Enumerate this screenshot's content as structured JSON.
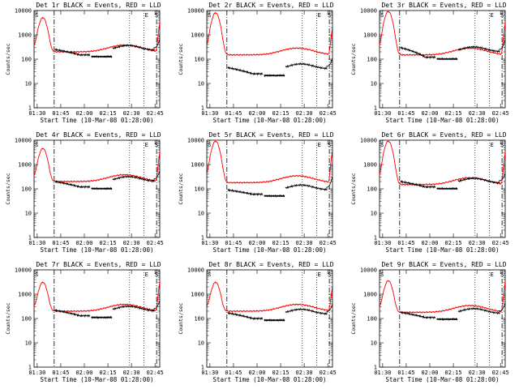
{
  "chart_data": [
    {
      "type": "line",
      "title": "Det 1r BLACK = Events, RED = LLD",
      "xlabel": "Start Time (10-Mar-08 01:28:00)",
      "ylabel": "Counts/sec",
      "x_ticks": [
        "01:30",
        "01:45",
        "02:00",
        "02:15",
        "02:30",
        "02:45"
      ],
      "y_ticks": [
        "1",
        "10",
        "100",
        "1000",
        "10000"
      ],
      "ylim": [
        1,
        10000
      ],
      "y_scale": "log",
      "corner_markers": [
        "S",
        "E",
        "S"
      ],
      "series": [
        {
          "color": "#ff0000",
          "peak": 5000,
          "trough": 200,
          "end": 3000
        },
        {
          "color": "#000000",
          "start": 250,
          "low": 150,
          "mid_step": 230,
          "end": 600
        }
      ]
    },
    {
      "type": "line",
      "title": "Det 2r BLACK = Events, RED = LLD",
      "xlabel": "Start Time (10-Mar-08 01:28:00)",
      "ylabel": "Counts/sec",
      "x_ticks": [
        "01:30",
        "01:45",
        "02:00",
        "02:15",
        "02:30",
        "02:45"
      ],
      "y_ticks": [
        "1",
        "10",
        "100",
        "1000",
        "10000"
      ],
      "ylim": [
        1,
        10000
      ],
      "y_scale": "log",
      "corner_markers": [
        "S",
        "E",
        "S"
      ],
      "series": [
        {
          "color": "#ff0000",
          "peak": 8000,
          "trough": 150,
          "end": 2000
        },
        {
          "color": "#000000",
          "start": 45,
          "low": 25,
          "mid_step": 40,
          "end": 100
        }
      ]
    },
    {
      "type": "line",
      "title": "Det 3r BLACK = Events, RED = LLD",
      "xlabel": "Start Time (10-Mar-08 01:28:00)",
      "ylabel": "Counts/sec",
      "x_ticks": [
        "01:30",
        "01:45",
        "02:00",
        "02:15",
        "02:30",
        "02:45"
      ],
      "y_ticks": [
        "1",
        "10",
        "100",
        "1000",
        "10000"
      ],
      "ylim": [
        1,
        10000
      ],
      "y_scale": "log",
      "corner_markers": [
        "S",
        "E",
        "S"
      ],
      "series": [
        {
          "color": "#ff0000",
          "peak": 9000,
          "trough": 150,
          "end": 3000
        },
        {
          "color": "#000000",
          "start": 300,
          "low": 120,
          "mid_step": 200,
          "end": 600
        }
      ]
    },
    {
      "type": "line",
      "title": "Det 4r BLACK = Events, RED = LLD",
      "xlabel": "Start Time (10-Mar-08 01:28:00)",
      "ylabel": "Counts/sec",
      "x_ticks": [
        "01:30",
        "01:45",
        "02:00",
        "02:15",
        "02:30",
        "02:45"
      ],
      "y_ticks": [
        "1",
        "10",
        "100",
        "1000",
        "10000"
      ],
      "ylim": [
        1,
        10000
      ],
      "y_scale": "log",
      "corner_markers": [
        "S",
        "E",
        "S"
      ],
      "series": [
        {
          "color": "#ff0000",
          "peak": 4500,
          "trough": 200,
          "end": 3000
        },
        {
          "color": "#000000",
          "start": 200,
          "low": 120,
          "mid_step": 200,
          "end": 500
        }
      ]
    },
    {
      "type": "line",
      "title": "Det 5r BLACK = Events, RED = LLD",
      "xlabel": "Start Time (10-Mar-08 01:28:00)",
      "ylabel": "Counts/sec",
      "x_ticks": [
        "01:30",
        "01:45",
        "02:00",
        "02:15",
        "02:30",
        "02:45"
      ],
      "y_ticks": [
        "1",
        "10",
        "100",
        "1000",
        "10000"
      ],
      "ylim": [
        1,
        10000
      ],
      "y_scale": "log",
      "corner_markers": [
        "S",
        "E",
        "S"
      ],
      "series": [
        {
          "color": "#ff0000",
          "peak": 9000,
          "trough": 180,
          "end": 4000
        },
        {
          "color": "#000000",
          "start": 90,
          "low": 60,
          "mid_step": 90,
          "end": 300
        }
      ]
    },
    {
      "type": "line",
      "title": "Det 6r BLACK = Events, RED = LLD",
      "xlabel": "Start Time (10-Mar-08 01:28:00)",
      "ylabel": "Counts/sec",
      "x_ticks": [
        "01:30",
        "01:45",
        "02:00",
        "02:15",
        "02:30",
        "02:45"
      ],
      "y_ticks": [
        "1",
        "10",
        "100",
        "1000",
        "10000"
      ],
      "ylim": [
        1,
        10000
      ],
      "y_scale": "log",
      "corner_markers": [
        "S",
        "E",
        "S"
      ],
      "series": [
        {
          "color": "#ff0000",
          "peak": 9000,
          "trough": 150,
          "end": 3000
        },
        {
          "color": "#000000",
          "start": 200,
          "low": 120,
          "mid_step": 170,
          "end": 400
        }
      ]
    },
    {
      "type": "line",
      "title": "Det 7r BLACK = Events, RED = LLD",
      "xlabel": "Start Time (10-Mar-08 01:28:00)",
      "ylabel": "Counts/sec",
      "x_ticks": [
        "01:30",
        "01:45",
        "02:00",
        "02:15",
        "02:30",
        "02:45"
      ],
      "y_ticks": [
        "1",
        "10",
        "100",
        "1000",
        "10000"
      ],
      "ylim": [
        1,
        10000
      ],
      "y_scale": "log",
      "corner_markers": [
        "S",
        "E",
        "S"
      ],
      "series": [
        {
          "color": "#ff0000",
          "peak": 3000,
          "trough": 200,
          "end": 3000
        },
        {
          "color": "#000000",
          "start": 220,
          "low": 130,
          "mid_step": 200,
          "end": 500
        }
      ]
    },
    {
      "type": "line",
      "title": "Det 8r BLACK = Events, RED = LLD",
      "xlabel": "Start Time (10-Mar-08 01:28:00)",
      "ylabel": "Counts/sec",
      "x_ticks": [
        "01:30",
        "01:45",
        "02:00",
        "02:15",
        "02:30",
        "02:45"
      ],
      "y_ticks": [
        "1",
        "10",
        "100",
        "1000",
        "10000"
      ],
      "ylim": [
        1,
        10000
      ],
      "y_scale": "log",
      "corner_markers": [
        "S",
        "E",
        "S"
      ],
      "series": [
        {
          "color": "#ff0000",
          "peak": 3000,
          "trough": 200,
          "end": 2000
        },
        {
          "color": "#000000",
          "start": 170,
          "low": 100,
          "mid_step": 150,
          "end": 350
        }
      ]
    },
    {
      "type": "line",
      "title": "Det 9r BLACK = Events, RED = LLD",
      "xlabel": "Start Time (10-Mar-08 01:28:00)",
      "ylabel": "Counts/sec",
      "x_ticks": [
        "01:30",
        "01:45",
        "02:00",
        "02:15",
        "02:30",
        "02:45"
      ],
      "y_ticks": [
        "1",
        "10",
        "100",
        "1000",
        "10000"
      ],
      "ylim": [
        1,
        10000
      ],
      "y_scale": "log",
      "corner_markers": [
        "S",
        "E",
        "S"
      ],
      "series": [
        {
          "color": "#ff0000",
          "peak": 3500,
          "trough": 180,
          "end": 3000
        },
        {
          "color": "#000000",
          "start": 180,
          "low": 110,
          "mid_step": 160,
          "end": 400
        }
      ]
    }
  ]
}
